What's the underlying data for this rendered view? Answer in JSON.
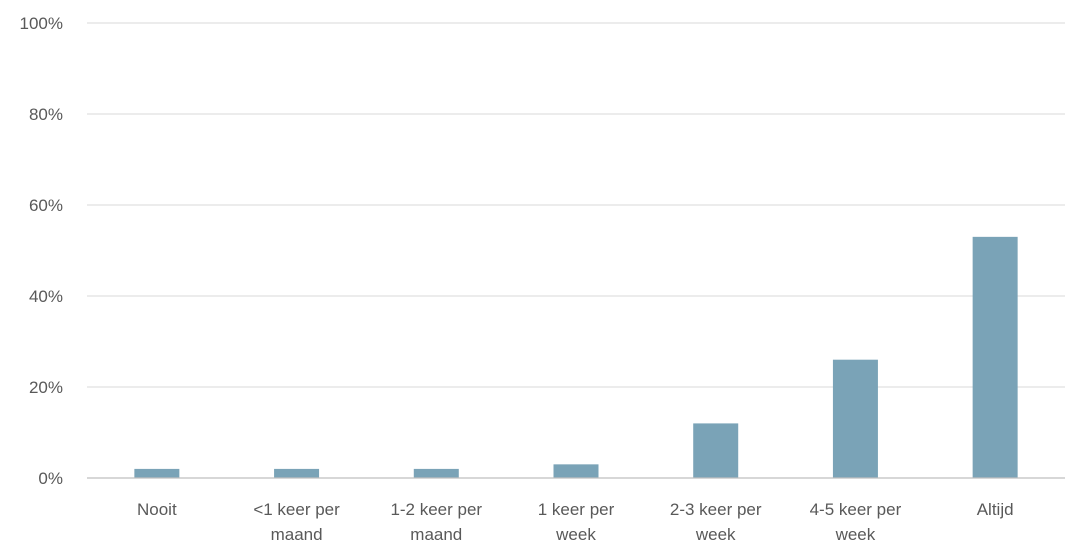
{
  "chart_data": {
    "type": "bar",
    "title": "",
    "xlabel": "",
    "ylabel": "",
    "categories": [
      [
        "Nooit"
      ],
      [
        "<1 keer per",
        "maand"
      ],
      [
        "1-2 keer per",
        "maand"
      ],
      [
        "1 keer per",
        "week"
      ],
      [
        "2-3 keer per",
        "week"
      ],
      [
        "4-5 keer per",
        "week"
      ],
      [
        "Altijd"
      ]
    ],
    "values": [
      2,
      2,
      2,
      3,
      12,
      26,
      53
    ],
    "ylim": [
      0,
      100
    ],
    "yticks": [
      0,
      20,
      40,
      60,
      80,
      100
    ],
    "ytick_labels": [
      "0%",
      "20%",
      "40%",
      "60%",
      "80%",
      "100%"
    ],
    "grid": true,
    "legend": "none",
    "bar_color": "#7aa3b7"
  }
}
